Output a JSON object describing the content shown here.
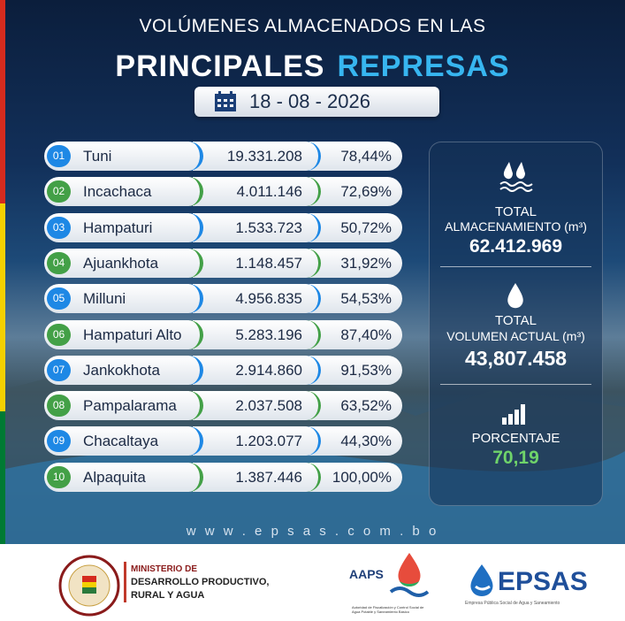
{
  "header": {
    "line1": "VOLÚMENES ALMACENADOS EN LAS",
    "title_part1": "PRINCIPALES",
    "title_part2": "REPRESAS",
    "date": "18 - 08 - 2026"
  },
  "table": {
    "rows": [
      [
        "01",
        "Tuni",
        "19.331.208",
        "78,44%"
      ],
      [
        "02",
        "Incachaca",
        "4.011.146",
        "72,69%"
      ],
      [
        "03",
        "Hampaturi",
        "1.533.723",
        "50,72%"
      ],
      [
        "04",
        "Ajuankhota",
        "1.148.457",
        "31,92%"
      ],
      [
        "05",
        "Milluni",
        "4.956.835",
        "54,53%"
      ],
      [
        "06",
        "Hampaturi Alto",
        "5.283.196",
        "87,40%"
      ],
      [
        "07",
        "Jankokhota",
        "2.914.860",
        "91,53%"
      ],
      [
        "08",
        "Pampalarama",
        "2.037.508",
        "63,52%"
      ],
      [
        "09",
        "Chacaltaya",
        "1.203.077",
        "44,30%"
      ],
      [
        "10",
        "Alpaquita",
        "1.387.446",
        "100,00%"
      ]
    ]
  },
  "summary": {
    "storage": {
      "label1": "TOTAL",
      "label2": "ALMACENAMIENTO (m³)",
      "value": "62.412.969"
    },
    "current": {
      "label1": "TOTAL",
      "label2": "VOLUMEN ACTUAL (m³)",
      "value": "43,807.458"
    },
    "percentage": {
      "label": "PORCENTAJE",
      "value": "70,19"
    }
  },
  "website": "w w w . e p s a s . c o m . b o",
  "footer": {
    "ministry": {
      "line1": "MINISTERIO DE",
      "line2": "DESARROLLO PRODUCTIVO,",
      "line3": "RURAL Y AGUA"
    },
    "aaps": {
      "name": "AAPS",
      "subtitle": "Autoridad de Fiscalización y Control Social de Agua Potable y Saneamiento Básico"
    },
    "epsas": {
      "name": "EPSAS",
      "subtitle": "Empresa Pública Social de Agua y Saneamiento"
    }
  }
}
